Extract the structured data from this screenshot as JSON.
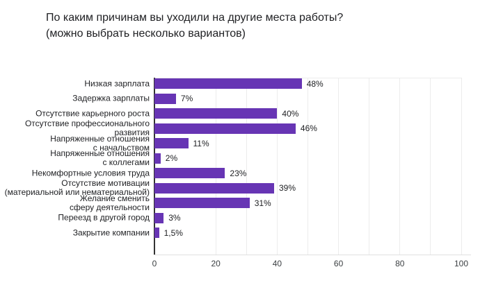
{
  "title": {
    "line1": "По каким причинам вы уходили на другие места работы?",
    "line2": "(можно выбрать несколько вариантов)"
  },
  "colors": {
    "bar": "#6735b4",
    "axis": "#333333",
    "gridline": "#ececec",
    "baseline": "#e0e0e0",
    "tick_text": "#3c4043",
    "label_text": "#202124"
  },
  "chart_data": {
    "type": "bar",
    "orientation": "horizontal",
    "title": "По каким причинам вы уходили на другие места работы? (можно выбрать несколько вариантов)",
    "categories": [
      "Низкая зарплата",
      "Задержка зарплаты",
      "Отсутствие карьерного роста",
      "Отсутствие профессионального развития",
      "Напряженные отношения с начальством",
      "Напряженные отношения с коллегами",
      "Некомфортные условия труда",
      "Отсутствие мотивации (материальной или нематериальной)",
      "Желание сменить сферу деятельности",
      "Переезд в другой город",
      "Закрытие компании"
    ],
    "category_lines": [
      [
        "Низкая зарплата"
      ],
      [
        "Задержка зарплаты"
      ],
      [
        "Отсутствие карьерного роста"
      ],
      [
        "Отсутствие профессионального",
        "развития"
      ],
      [
        "Напряженные отношения",
        "с начальством"
      ],
      [
        "Напряженные отношения",
        "с коллегами"
      ],
      [
        "Некомфортные условия труда"
      ],
      [
        "Отсутствие мотивации",
        "(материальной или нематериальной)"
      ],
      [
        "Желание сменить",
        "сферу деятельности"
      ],
      [
        "Переезд в другой город"
      ],
      [
        "Закрытие компании"
      ]
    ],
    "values": [
      48,
      7,
      40,
      46,
      11,
      2,
      23,
      39,
      31,
      3,
      1.5
    ],
    "value_labels": [
      "48%",
      "7%",
      "40%",
      "46%",
      "11%",
      "2%",
      "23%",
      "39%",
      "31%",
      "3%",
      "1,5%"
    ],
    "xlim": [
      0,
      100
    ],
    "x_ticks": [
      0,
      20,
      40,
      60,
      80,
      100
    ],
    "gridline_values": [
      20,
      30,
      40,
      50,
      60,
      70,
      80,
      90,
      100
    ],
    "grid": true,
    "legend": "none"
  }
}
